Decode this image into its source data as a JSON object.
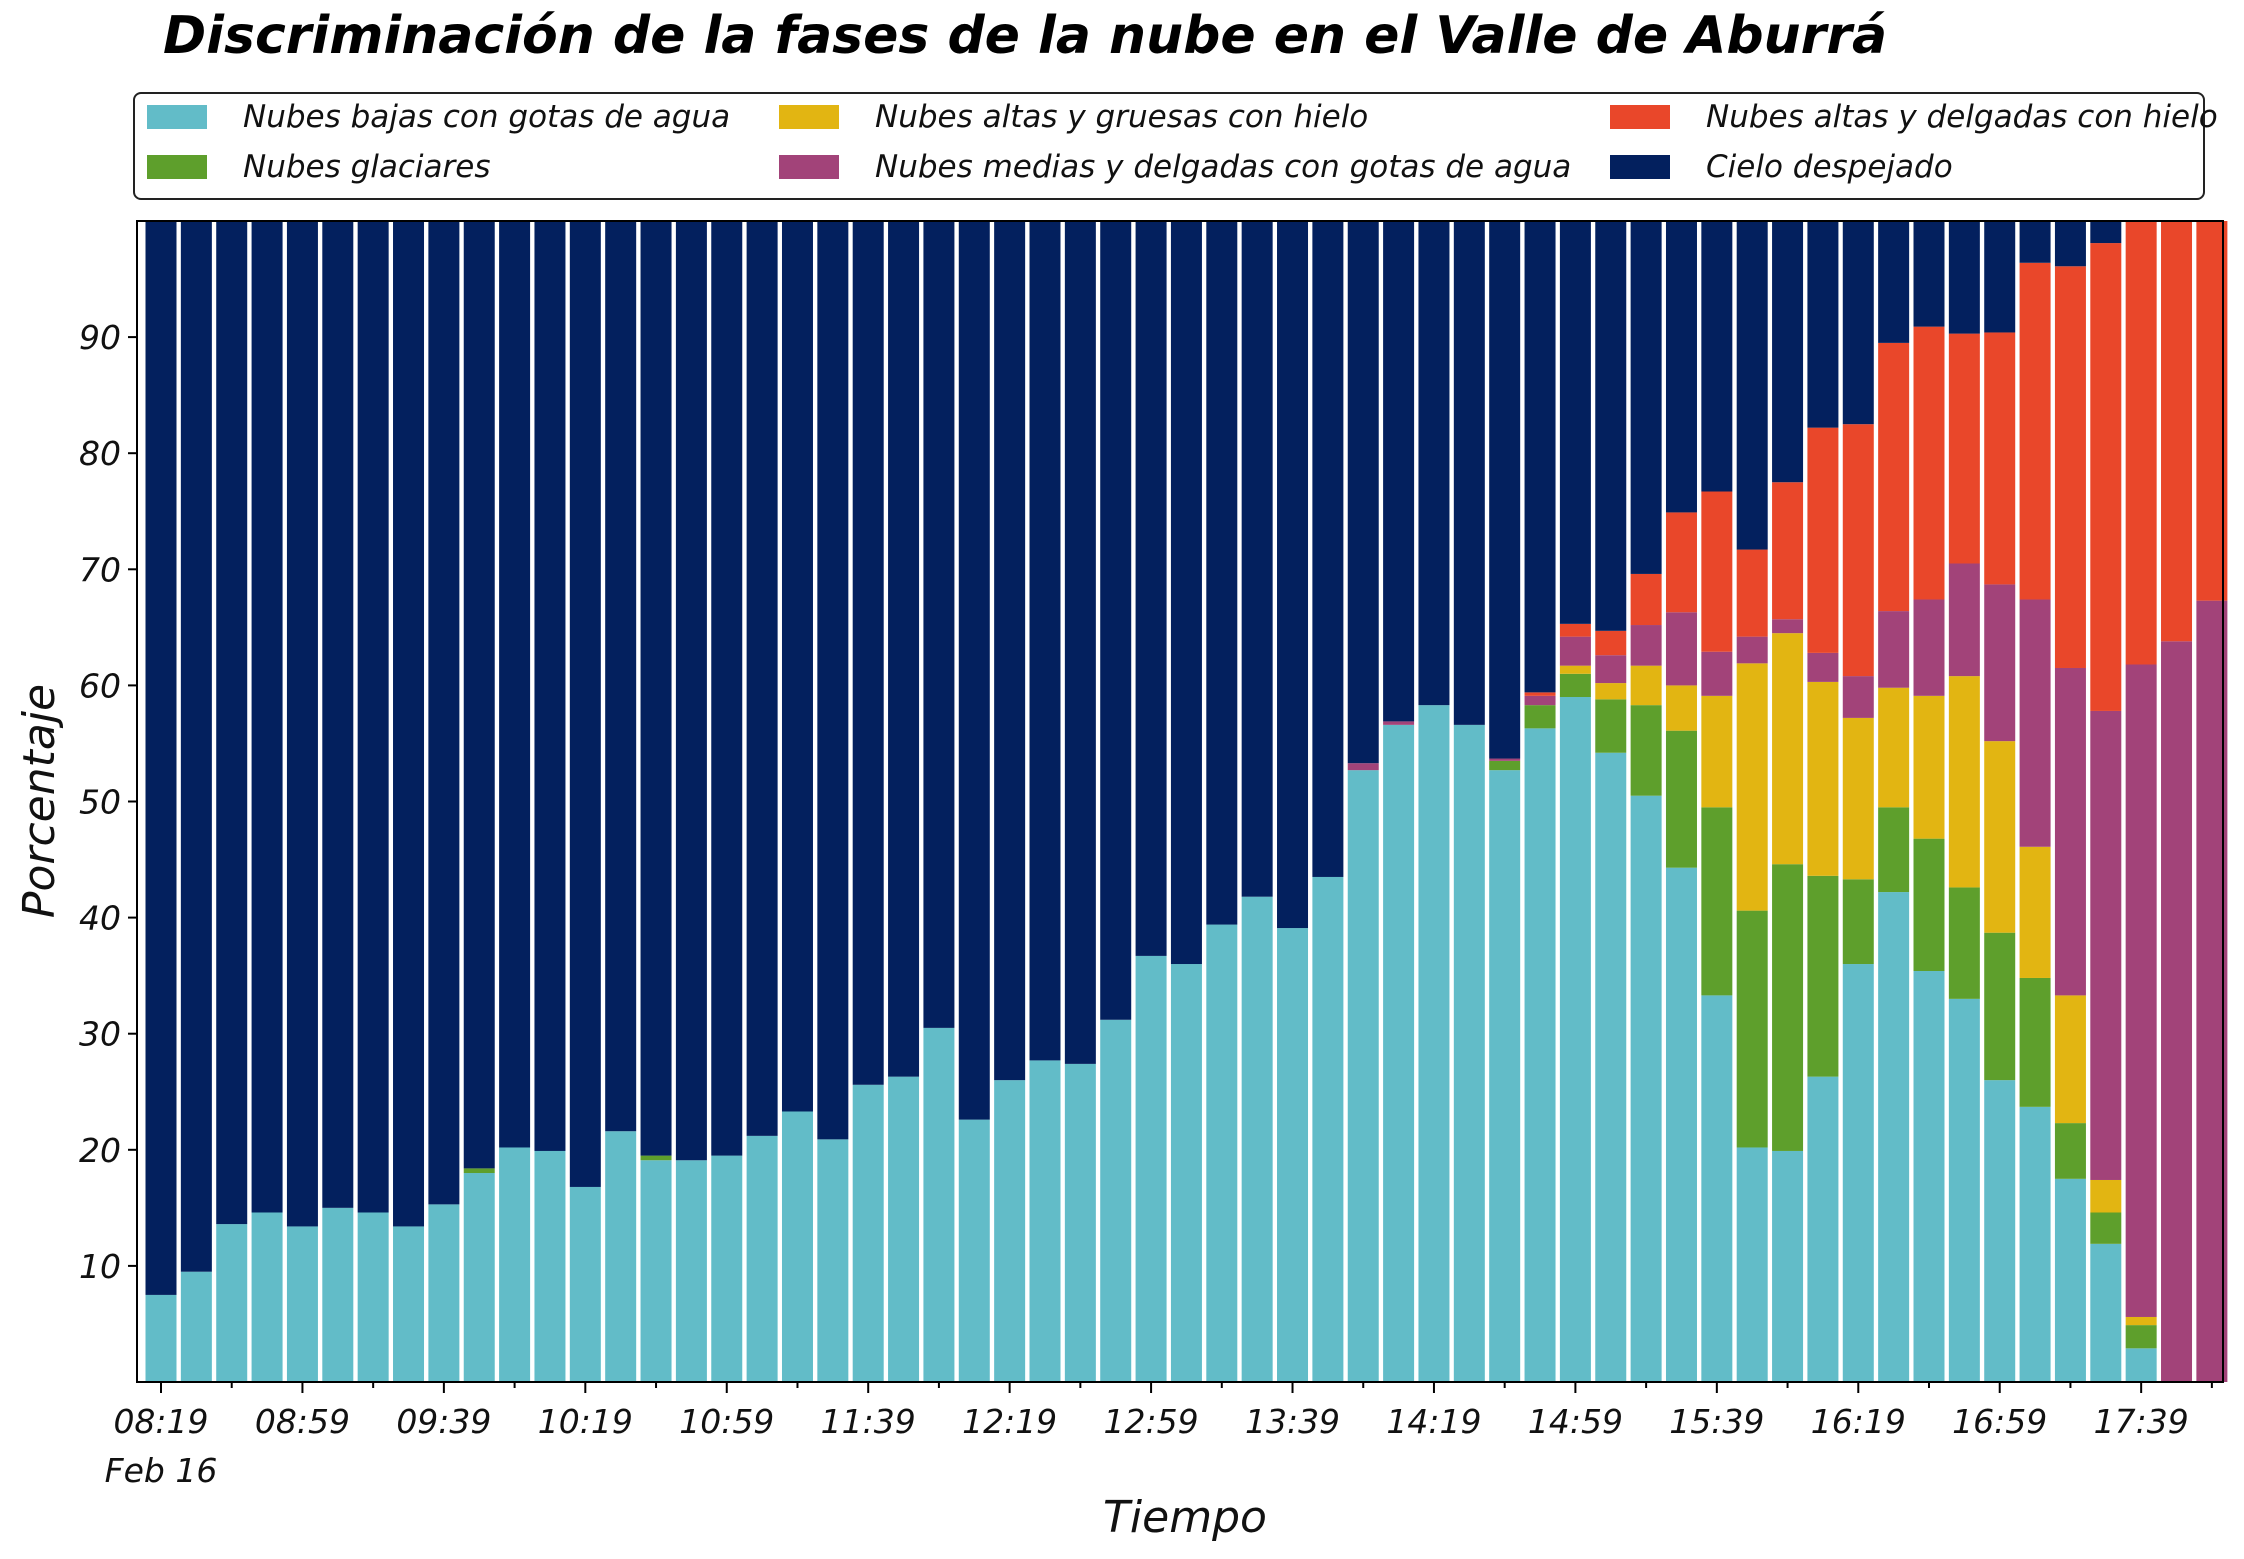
{
  "chart_data": {
    "type": "bar",
    "stacked": true,
    "title": "Discriminación de la fases de la nube en el Valle de Aburrá",
    "xlabel": "Tiempo",
    "ylabel": "Porcentaje",
    "ylim": [
      0,
      100
    ],
    "yticks": [
      10,
      20,
      30,
      40,
      50,
      60,
      70,
      80,
      90
    ],
    "xtick_labels": [
      "08:19",
      "08:59",
      "09:39",
      "10:19",
      "10:59",
      "11:39",
      "12:19",
      "12:59",
      "13:39",
      "14:19",
      "14:59",
      "15:39",
      "16:19",
      "16:59",
      "17:39"
    ],
    "xtick_sublabel": "Feb 16",
    "legend_position": "top",
    "grid": false,
    "categories": [
      "08:19",
      "08:29",
      "08:39",
      "08:49",
      "08:59",
      "09:09",
      "09:19",
      "09:29",
      "09:39",
      "09:49",
      "09:59",
      "10:09",
      "10:19",
      "10:29",
      "10:39",
      "10:49",
      "10:59",
      "11:09",
      "11:19",
      "11:29",
      "11:39",
      "11:49",
      "11:59",
      "12:09",
      "12:19",
      "12:29",
      "12:39",
      "12:49",
      "12:59",
      "13:09",
      "13:19",
      "13:29",
      "13:39",
      "13:49",
      "13:59",
      "14:09",
      "14:19",
      "14:29",
      "14:39",
      "14:49",
      "14:59",
      "15:09",
      "15:19",
      "15:29",
      "15:39",
      "15:49",
      "15:59",
      "16:09",
      "16:19",
      "16:29",
      "16:39",
      "16:49",
      "16:59",
      "17:09",
      "17:19",
      "17:29",
      "17:39",
      "17:49",
      "17:59"
    ],
    "series": [
      {
        "name": "Nubes bajas con gotas de agua",
        "color": "#62bcc8",
        "values": [
          7.5,
          9.5,
          13.6,
          14.6,
          13.4,
          15.0,
          14.6,
          13.4,
          15.3,
          18.0,
          20.2,
          19.9,
          16.8,
          21.6,
          19.1,
          19.1,
          19.5,
          21.2,
          23.3,
          20.9,
          25.6,
          26.3,
          30.5,
          22.6,
          26.0,
          27.7,
          27.4,
          31.2,
          36.7,
          36.0,
          39.4,
          41.8,
          39.1,
          43.5,
          52.7,
          56.6,
          58.3,
          56.6,
          52.7,
          56.3,
          59.0,
          54.2,
          50.5,
          44.3,
          33.3,
          20.2,
          19.9,
          26.3,
          36.0,
          42.2,
          35.4,
          33.0,
          26.0,
          23.7,
          17.5,
          11.9,
          2.9,
          0,
          0
        ]
      },
      {
        "name": "Nubes glaciares",
        "color": "#5e9f2c",
        "values": [
          0,
          0,
          0,
          0,
          0,
          0,
          0,
          0,
          0,
          0.4,
          0,
          0,
          0,
          0,
          0.4,
          0,
          0,
          0,
          0,
          0,
          0,
          0,
          0,
          0,
          0,
          0,
          0,
          0,
          0,
          0,
          0,
          0,
          0,
          0,
          0,
          0,
          0,
          0,
          0.8,
          2.0,
          2.0,
          4.6,
          7.8,
          11.8,
          16.2,
          20.4,
          24.7,
          17.3,
          7.3,
          7.3,
          11.4,
          9.6,
          12.7,
          11.1,
          4.8,
          2.7,
          2.0,
          0,
          0
        ]
      },
      {
        "name": "Nubes altas y gruesas con hielo",
        "color": "#e2b512",
        "values": [
          0,
          0,
          0,
          0,
          0,
          0,
          0,
          0,
          0,
          0,
          0,
          0,
          0,
          0,
          0,
          0,
          0,
          0,
          0,
          0,
          0,
          0,
          0,
          0,
          0,
          0,
          0,
          0,
          0,
          0,
          0,
          0,
          0,
          0,
          0,
          0,
          0,
          0,
          0,
          0,
          0.7,
          1.4,
          3.4,
          3.9,
          9.6,
          21.3,
          19.9,
          16.7,
          13.9,
          10.3,
          12.3,
          18.2,
          16.5,
          11.3,
          11.0,
          2.8,
          0.7,
          0,
          0
        ]
      },
      {
        "name": "Nubes medias y delgadas con gotas de agua",
        "color": "#a24379",
        "values": [
          0,
          0,
          0,
          0,
          0,
          0,
          0,
          0,
          0,
          0,
          0,
          0,
          0,
          0,
          0,
          0,
          0,
          0,
          0,
          0,
          0,
          0,
          0,
          0,
          0,
          0,
          0,
          0,
          0,
          0,
          0,
          0,
          0,
          0,
          0.6,
          0.3,
          0,
          0,
          0.2,
          0.8,
          2.5,
          2.4,
          3.5,
          6.3,
          3.8,
          2.3,
          1.2,
          2.5,
          3.6,
          6.6,
          8.3,
          9.7,
          13.5,
          21.3,
          28.2,
          40.4,
          56.2,
          63.8,
          67.3
        ]
      },
      {
        "name": "Nubes altas y delgadas con hielo",
        "color": "#e9472a",
        "values": [
          0,
          0,
          0,
          0,
          0,
          0,
          0,
          0,
          0,
          0,
          0,
          0,
          0,
          0,
          0,
          0,
          0,
          0,
          0,
          0,
          0,
          0,
          0,
          0,
          0,
          0,
          0,
          0,
          0,
          0,
          0,
          0,
          0,
          0,
          0,
          0,
          0,
          0,
          0,
          0.3,
          1.1,
          2.1,
          4.4,
          8.6,
          13.8,
          7.5,
          11.8,
          19.4,
          21.7,
          23.1,
          23.5,
          19.8,
          21.7,
          29.0,
          34.6,
          40.3,
          38.4,
          36.2,
          32.7
        ]
      },
      {
        "name": "Cielo despejado",
        "color": "#03205e",
        "values": [
          92.5,
          90.5,
          86.4,
          85.4,
          86.6,
          85.0,
          85.4,
          86.6,
          84.7,
          81.6,
          79.8,
          80.1,
          83.2,
          78.4,
          80.5,
          80.9,
          80.5,
          78.8,
          76.7,
          79.1,
          74.4,
          73.7,
          69.5,
          77.4,
          74.0,
          72.3,
          72.6,
          68.8,
          63.3,
          64.0,
          60.6,
          58.2,
          60.9,
          56.5,
          46.7,
          43.1,
          41.7,
          43.4,
          46.3,
          40.6,
          34.7,
          35.3,
          30.4,
          25.1,
          23.3,
          28.3,
          22.5,
          17.8,
          17.5,
          10.5,
          9.1,
          9.7,
          9.6,
          3.6,
          3.9,
          1.9,
          0.2,
          0,
          0
        ]
      }
    ]
  }
}
